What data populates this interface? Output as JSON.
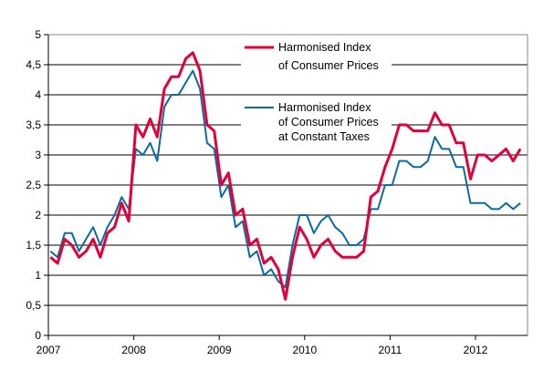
{
  "chart_data": {
    "type": "line",
    "title": "",
    "xlabel": "",
    "ylabel": "",
    "ylim": [
      0,
      5
    ],
    "yticks": [
      "0",
      "0,5",
      "1",
      "1,5",
      "2",
      "2,5",
      "3",
      "3,5",
      "4",
      "4,5",
      "5"
    ],
    "xticks": [
      "2007",
      "2008",
      "2009",
      "2010",
      "2011",
      "2012"
    ],
    "x_start": "2007-01",
    "x_end": "2012-07",
    "frequency": "monthly",
    "grid": "horizontal",
    "legend_position": "top-right",
    "series": [
      {
        "name": "Harmonised Index of Consumer Prices",
        "legend_lines": [
          "Harmonised Index",
          "of Consumer Prices"
        ],
        "color": "#e4003a",
        "values": [
          1.3,
          1.2,
          1.6,
          1.5,
          1.3,
          1.4,
          1.6,
          1.3,
          1.7,
          1.8,
          2.2,
          1.9,
          3.5,
          3.3,
          3.6,
          3.3,
          4.1,
          4.3,
          4.3,
          4.6,
          4.7,
          4.4,
          3.5,
          3.4,
          2.5,
          2.7,
          2.0,
          2.1,
          1.5,
          1.6,
          1.2,
          1.3,
          1.1,
          0.6,
          1.3,
          1.8,
          1.6,
          1.3,
          1.5,
          1.6,
          1.4,
          1.3,
          1.3,
          1.3,
          1.4,
          2.3,
          2.4,
          2.8,
          3.1,
          3.5,
          3.5,
          3.4,
          3.4,
          3.4,
          3.7,
          3.5,
          3.5,
          3.2,
          3.2,
          2.6,
          3.0,
          3.0,
          2.9,
          3.0,
          3.1,
          2.9,
          3.1
        ]
      },
      {
        "name": "Harmonised Index of Consumer Prices at Constant Taxes",
        "legend_lines": [
          "Harmonised Index",
          "of Consumer Prices",
          "at Constant Taxes"
        ],
        "color": "#0a6aa1",
        "values": [
          1.4,
          1.3,
          1.7,
          1.7,
          1.4,
          1.6,
          1.8,
          1.5,
          1.8,
          2.0,
          2.3,
          2.1,
          3.1,
          3.0,
          3.2,
          2.9,
          3.8,
          4.0,
          4.0,
          4.2,
          4.4,
          4.1,
          3.2,
          3.1,
          2.3,
          2.5,
          1.8,
          1.9,
          1.3,
          1.4,
          1.0,
          1.1,
          0.9,
          0.8,
          1.5,
          2.0,
          2.0,
          1.7,
          1.9,
          2.0,
          1.8,
          1.7,
          1.5,
          1.5,
          1.6,
          2.1,
          2.1,
          2.5,
          2.5,
          2.9,
          2.9,
          2.8,
          2.8,
          2.9,
          3.3,
          3.1,
          3.1,
          2.8,
          2.8,
          2.2,
          2.2,
          2.2,
          2.1,
          2.1,
          2.2,
          2.1,
          2.2
        ]
      }
    ]
  }
}
